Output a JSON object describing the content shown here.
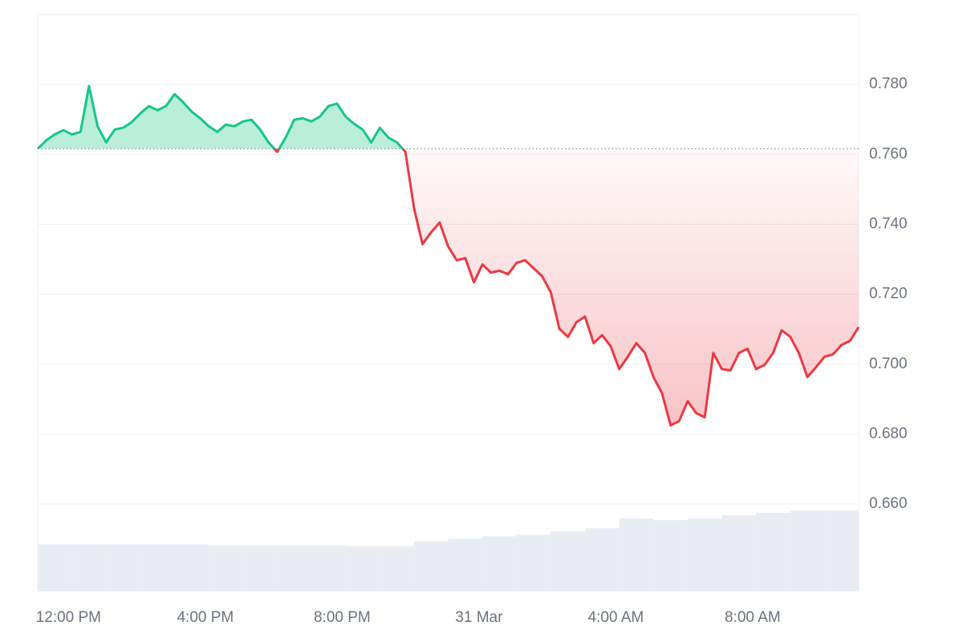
{
  "chart_data": {
    "type": "line",
    "x": [
      11.1,
      11.35,
      11.6,
      11.85,
      12.1,
      12.35,
      12.6,
      12.85,
      13.1,
      13.35,
      13.6,
      13.85,
      14.1,
      14.35,
      14.6,
      14.85,
      15.1,
      15.35,
      15.6,
      15.85,
      16.1,
      16.35,
      16.6,
      16.85,
      17.1,
      17.35,
      17.6,
      17.85,
      18.1,
      18.35,
      18.6,
      18.85,
      19.1,
      19.35,
      19.6,
      19.85,
      20.1,
      20.35,
      20.6,
      20.85,
      21.1,
      21.35,
      21.6,
      21.85,
      22.1,
      22.35,
      22.6,
      22.85,
      23.1,
      23.35,
      23.6,
      23.85,
      24.1,
      24.35,
      24.6,
      24.85,
      25.1,
      25.35,
      25.6,
      25.85,
      26.1,
      26.35,
      26.6,
      26.85,
      27.1,
      27.35,
      27.6,
      27.85,
      28.1,
      28.35,
      28.6,
      28.85,
      29.1,
      29.35,
      29.6,
      29.85,
      30.1,
      30.35,
      30.6,
      30.85,
      31.1,
      31.35,
      31.6,
      31.85,
      32.1,
      32.35,
      32.6,
      32.85,
      33.1,
      33.35,
      33.6,
      33.85,
      34.1,
      34.35,
      34.6,
      34.85,
      35.1
    ],
    "series": [
      {
        "values": [
          0.7616,
          0.764,
          0.7657,
          0.7669,
          0.7657,
          0.7664,
          0.7795,
          0.768,
          0.7634,
          0.7671,
          0.7676,
          0.7692,
          0.7717,
          0.7738,
          0.7726,
          0.7738,
          0.7772,
          0.7749,
          0.7722,
          0.7703,
          0.768,
          0.7664,
          0.7685,
          0.768,
          0.7694,
          0.7699,
          0.7671,
          0.7634,
          0.7607,
          0.7648,
          0.7699,
          0.7703,
          0.7694,
          0.7708,
          0.7738,
          0.7745,
          0.7708,
          0.7687,
          0.7671,
          0.7634,
          0.7676,
          0.7648,
          0.7634,
          0.7607,
          0.7446,
          0.7343,
          0.7377,
          0.7405,
          0.7336,
          0.7297,
          0.7303,
          0.7234,
          0.7285,
          0.7262,
          0.7267,
          0.7257,
          0.729,
          0.7297,
          0.7274,
          0.7251,
          0.7205,
          0.7101,
          0.7078,
          0.712,
          0.7136,
          0.706,
          0.7083,
          0.7051,
          0.6986,
          0.7021,
          0.706,
          0.7032,
          0.6963,
          0.6917,
          0.6825,
          0.6837,
          0.6894,
          0.686,
          0.6848,
          0.7032,
          0.6986,
          0.6982,
          0.7032,
          0.7044,
          0.6986,
          0.6998,
          0.7032,
          0.7097,
          0.7078,
          0.7032,
          0.6963,
          0.6991,
          0.7021,
          0.7028,
          0.7055,
          0.7067,
          0.7106
        ],
        "up_color": "#16c784",
        "down_color": "#ea3943"
      }
    ],
    "volume": {
      "values": [
        58,
        58,
        58,
        58,
        58,
        57,
        57,
        57,
        57,
        56,
        56,
        62,
        65,
        68,
        70,
        74,
        78,
        90,
        88,
        90,
        94,
        97,
        100,
        100
      ],
      "color": "#e9edf3"
    },
    "xlim": [
      11.1,
      35.1
    ],
    "xticks": [
      {
        "value": 12,
        "label": "12:00 PM"
      },
      {
        "value": 16,
        "label": "4:00 PM"
      },
      {
        "value": 20,
        "label": "8:00 PM"
      },
      {
        "value": 24,
        "label": "31 Mar"
      },
      {
        "value": 28,
        "label": "4:00 AM"
      },
      {
        "value": 32,
        "label": "8:00 AM"
      }
    ],
    "ylim": [
      0.635,
      0.8
    ],
    "yticks": [
      {
        "value": 0.66,
        "label": "0.660"
      },
      {
        "value": 0.68,
        "label": "0.680"
      },
      {
        "value": 0.7,
        "label": "0.700"
      },
      {
        "value": 0.72,
        "label": "0.720"
      },
      {
        "value": 0.74,
        "label": "0.740"
      },
      {
        "value": 0.76,
        "label": "0.760"
      },
      {
        "value": 0.78,
        "label": "0.780"
      }
    ],
    "grid": true
  }
}
